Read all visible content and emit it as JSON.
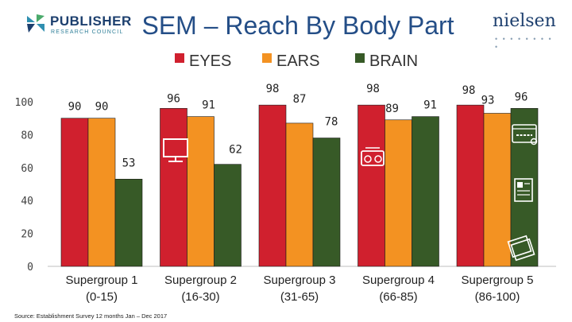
{
  "header": {
    "logo_left_name": "PUBLISHER",
    "logo_left_sub": "RESEARCH COUNCIL",
    "logo_right_name": "nielsen",
    "logo_right_dots": "• • • • • • • • •"
  },
  "footer": {
    "source": "Source: Establishment Survey 12 months Jan – Dec 2017"
  },
  "colors": {
    "eyes": "#d0202e",
    "ears": "#f39222",
    "brain": "#375a27"
  },
  "chart_data": {
    "type": "bar",
    "title": "SEM – Reach By Body Part",
    "categories": [
      [
        "Supergroup 1",
        "(0-15)"
      ],
      [
        "Supergroup 2",
        "(16-30)"
      ],
      [
        "Supergroup 3",
        "(31-65)"
      ],
      [
        "Supergroup 4",
        "(66-85)"
      ],
      [
        "Supergroup 5",
        "(86-100)"
      ]
    ],
    "series": [
      {
        "name": "EYES",
        "values": [
          90,
          96,
          98,
          98,
          98
        ]
      },
      {
        "name": "EARS",
        "values": [
          90,
          91,
          87,
          89,
          93
        ]
      },
      {
        "name": "BRAIN",
        "values": [
          53,
          62,
          78,
          91,
          96
        ]
      }
    ],
    "yticks": [
      0,
      20,
      40,
      60,
      80,
      100
    ],
    "ylim": [
      0,
      100
    ],
    "legend_position": "top",
    "icons": [
      "tv-icon",
      "radio-icon",
      "website-icon",
      "newspaper-icon",
      "magazine-icon"
    ]
  }
}
